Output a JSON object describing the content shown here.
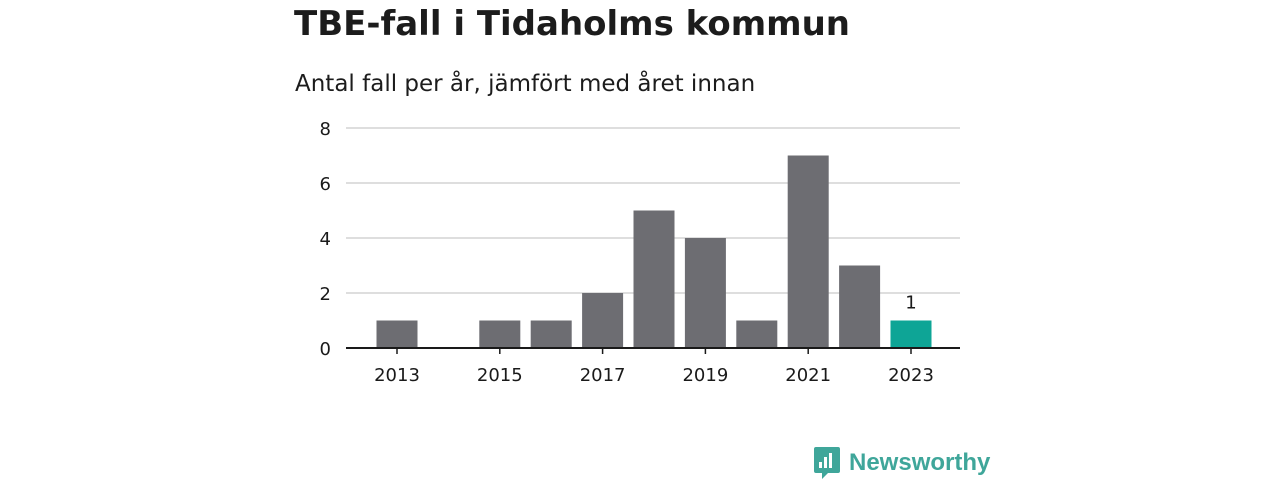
{
  "title": "TBE-fall i Tidaholms kommun",
  "subtitle": "Antal fall per år, jämfört med året innan",
  "brand": {
    "name": "Newsworthy",
    "icon": "newsworthy-logo-icon",
    "color": "#3fa69a"
  },
  "colors": {
    "bar": "#6d6d72",
    "highlight": "#0ea596",
    "grid": "#d4d4d4",
    "axis": "#1a1a1a",
    "text": "#1a1a1a"
  },
  "chart_data": {
    "type": "bar",
    "categories": [
      "2013",
      "2014",
      "2015",
      "2016",
      "2017",
      "2018",
      "2019",
      "2020",
      "2021",
      "2022",
      "2023"
    ],
    "values": [
      1,
      0,
      1,
      1,
      2,
      5,
      4,
      1,
      7,
      3,
      1
    ],
    "x_tick_labels": [
      "2013",
      "2015",
      "2017",
      "2019",
      "2021",
      "2023"
    ],
    "y_ticks": [
      0,
      2,
      4,
      6,
      8
    ],
    "ylim": [
      0,
      8
    ],
    "highlight_category": "2023",
    "data_labels": [
      {
        "category": "2023",
        "text": "1"
      }
    ],
    "grid": true,
    "legend": false
  }
}
